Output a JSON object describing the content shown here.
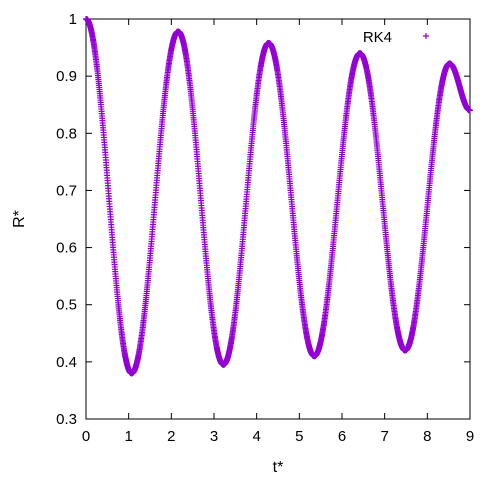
{
  "chart_data": {
    "type": "scatter",
    "xlabel": "t*",
    "ylabel": "R*",
    "xlim": [
      0,
      9
    ],
    "ylim": [
      0.3,
      1
    ],
    "xticks": [
      "0",
      "1",
      "2",
      "3",
      "4",
      "5",
      "6",
      "7",
      "8",
      "9"
    ],
    "yticks": [
      "0.3",
      "0.4",
      "0.5",
      "0.6",
      "0.7",
      "0.8",
      "0.9",
      "1"
    ],
    "grid": false,
    "legend_position": "top-right",
    "series": [
      {
        "name": "RK4",
        "color": "#9400d3",
        "marker": "plus",
        "keypoints": {
          "x": [
            0.0,
            1.07,
            2.16,
            3.22,
            4.28,
            5.35,
            6.42,
            7.48,
            8.52,
            9.0
          ],
          "y": [
            1.0,
            0.38,
            0.978,
            0.395,
            0.958,
            0.41,
            0.94,
            0.42,
            0.922,
            0.84
          ]
        }
      }
    ]
  }
}
